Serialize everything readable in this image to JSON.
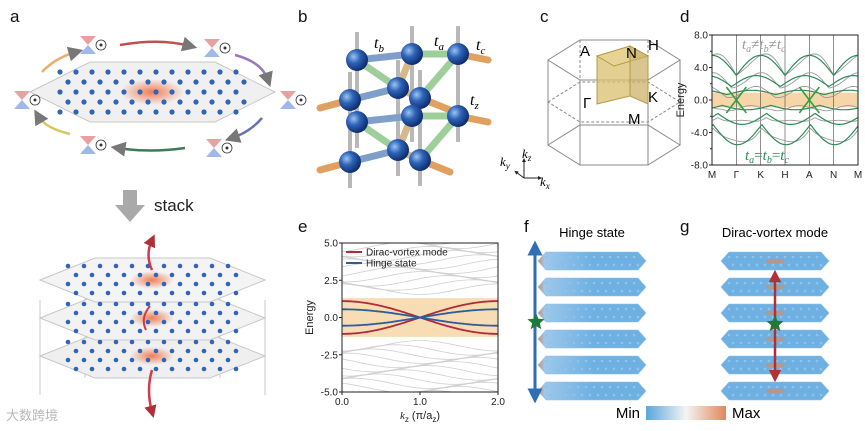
{
  "panels": {
    "a": {
      "label": "a",
      "stack_text": "stack"
    },
    "b": {
      "label": "b",
      "hop_labels": {
        "tb_main": "t",
        "tb_sub": "b",
        "ta_main": "t",
        "ta_sub": "a",
        "tc_main": "t",
        "tc_sub": "c",
        "tz_main": "t",
        "tz_sub": "z"
      }
    },
    "c": {
      "label": "c",
      "points": {
        "A": "A",
        "N": "N",
        "H": "H",
        "Gamma": "Γ",
        "K": "K",
        "M": "M"
      },
      "axes": {
        "ky_main": "k",
        "ky_sub": "y",
        "kz_main": "k",
        "kz_sub": "z",
        "kx_main": "k",
        "kx_sub": "x"
      }
    },
    "d": {
      "label": "d",
      "top_annot_prefix": "t",
      "top_annot_a": "a",
      "neq": "≠",
      "top_annot_b": "b",
      "top_annot_c": "c",
      "bottom_annot_eq": "=",
      "annot_t": "t",
      "annot_a": "a",
      "annot_b": "b",
      "annot_c": "c"
    },
    "e": {
      "label": "e"
    },
    "f": {
      "label": "f",
      "title": "Hinge state"
    },
    "g": {
      "label": "g",
      "title": "Dirac-vortex mode"
    }
  },
  "colorbar": {
    "min": "Min",
    "max": "Max",
    "low_color": "#5aa6dc",
    "high_color": "#e0885a"
  },
  "watermark": "大数跨境",
  "chart_data": [
    {
      "panel": "d",
      "type": "line",
      "ylabel": "Energy",
      "ylim": [
        -8.0,
        8.0
      ],
      "yticks": [
        "8.0",
        "4.0",
        "0.0",
        "-4.0",
        "-8.0"
      ],
      "yticks_minor": [
        "6",
        "2",
        "-2",
        "-6"
      ],
      "xticks": [
        "M",
        "Γ",
        "K",
        "H",
        "A",
        "N",
        "M"
      ],
      "band_window": [
        -0.9,
        0.9
      ],
      "colors": {
        "broken": "#9a9a9a",
        "symmetric": "#2e8b57",
        "window": "#f6d6a8"
      }
    },
    {
      "panel": "e",
      "type": "line",
      "xlabel_main": "k",
      "xlabel_sub": "z",
      "xlabel_units": " (π/a",
      "xlabel_units_sub": "z",
      "xlabel_close": ")",
      "ylabel": "Energy",
      "xlim": [
        0.0,
        2.0
      ],
      "ylim": [
        -5.0,
        5.0
      ],
      "xticks": [
        "0.0",
        "1.0",
        "2.0"
      ],
      "yticks": [
        "5.0",
        "2.5",
        "0.0",
        "-2.5",
        "-5.0"
      ],
      "band_window": [
        -1.3,
        1.3
      ],
      "series": [
        {
          "name": "Dirac-vortex mode",
          "color": "#b02a3a",
          "amplitude": 1.1
        },
        {
          "name": "Hinge state",
          "color": "#2f5c9a",
          "amplitude": 0.55
        }
      ]
    }
  ]
}
